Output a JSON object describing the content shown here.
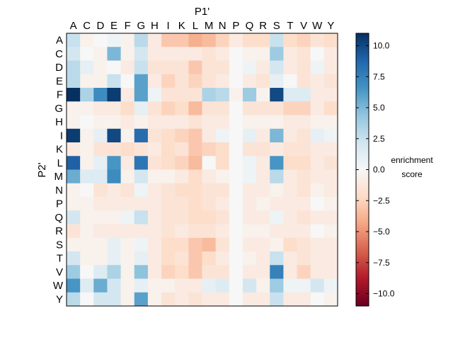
{
  "chart_data": {
    "type": "heatmap",
    "x_axis_title": "P1'",
    "y_axis_title": "P2'",
    "x_categories": [
      "A",
      "C",
      "D",
      "E",
      "F",
      "G",
      "H",
      "I",
      "K",
      "L",
      "M",
      "N",
      "P",
      "Q",
      "R",
      "S",
      "T",
      "V",
      "W",
      "Y"
    ],
    "y_categories": [
      "A",
      "C",
      "D",
      "E",
      "F",
      "G",
      "H",
      "I",
      "K",
      "L",
      "M",
      "N",
      "P",
      "Q",
      "R",
      "S",
      "T",
      "V",
      "W",
      "Y"
    ],
    "x_axis_position": "top",
    "colorbar": {
      "label_line1": "enrichment",
      "label_line2": "score",
      "range": [
        -11,
        11
      ],
      "ticks": [
        10.0,
        7.5,
        5.0,
        2.5,
        0.0,
        -2.5,
        -5.0,
        -7.5,
        -10.0
      ],
      "tick_labels": [
        "10.0",
        "7.5",
        "5.0",
        "2.5",
        "0.0",
        "−2.5",
        "−5.0",
        "−7.5",
        "−10.0"
      ],
      "colormap": "RdBu (blue = positive, red = negative)"
    },
    "values": [
      [
        2.5,
        -0.5,
        0.0,
        0.5,
        -0.5,
        3.0,
        -1.0,
        -3.0,
        -3.0,
        -4.0,
        -3.5,
        -2.5,
        -1.0,
        -2.0,
        -2.0,
        2.5,
        -2.0,
        -2.5,
        -1.5,
        -2.0
      ],
      [
        2.0,
        0.0,
        -0.5,
        5.0,
        -0.5,
        2.0,
        -1.0,
        -1.0,
        -1.0,
        -1.0,
        -1.5,
        -1.0,
        0.0,
        -0.5,
        -0.5,
        4.0,
        -1.0,
        -1.5,
        0.0,
        -1.0
      ],
      [
        3.0,
        1.0,
        -0.5,
        0.0,
        -1.0,
        2.5,
        -1.5,
        -1.5,
        -1.5,
        -3.0,
        -1.5,
        -1.5,
        0.0,
        0.5,
        -1.0,
        2.0,
        -1.0,
        -1.5,
        0.5,
        -1.0
      ],
      [
        3.0,
        -0.5,
        -0.5,
        2.5,
        0.0,
        6.0,
        -1.0,
        -2.5,
        -1.5,
        -2.5,
        -1.5,
        -1.0,
        0.0,
        -1.0,
        -1.5,
        1.0,
        0.0,
        -1.5,
        -1.0,
        -1.5
      ],
      [
        11.0,
        3.5,
        7.0,
        10.5,
        -1.0,
        6.0,
        0.5,
        -1.5,
        -1.5,
        -1.5,
        3.5,
        3.0,
        -0.5,
        4.0,
        -0.5,
        10.0,
        1.5,
        1.5,
        -1.0,
        -1.0
      ],
      [
        -0.5,
        -0.5,
        -1.0,
        -1.0,
        -2.0,
        1.0,
        -1.5,
        -2.5,
        -2.0,
        -3.5,
        -1.5,
        -1.5,
        0.0,
        -1.5,
        -1.5,
        -1.5,
        -2.5,
        -2.5,
        -1.0,
        -2.0
      ],
      [
        -0.5,
        0.0,
        -0.5,
        -0.5,
        -1.0,
        -0.5,
        -1.0,
        -1.0,
        -1.0,
        -1.5,
        -1.0,
        -1.0,
        0.0,
        -0.5,
        -0.5,
        -0.5,
        -1.0,
        -1.0,
        -0.5,
        -0.5
      ],
      [
        10.5,
        -0.5,
        1.0,
        10.0,
        -0.5,
        8.5,
        -1.5,
        -2.0,
        -2.5,
        -3.0,
        -1.0,
        0.5,
        0.0,
        1.0,
        -1.0,
        5.0,
        -1.0,
        -1.5,
        1.0,
        0.5
      ],
      [
        -1.0,
        -0.5,
        -1.5,
        -1.5,
        -2.0,
        -1.5,
        -1.0,
        -2.0,
        -1.5,
        -3.0,
        -2.5,
        -2.0,
        0.0,
        -1.5,
        -1.5,
        -1.0,
        -1.5,
        -1.5,
        -1.0,
        -1.0
      ],
      [
        9.0,
        -0.5,
        1.0,
        6.5,
        -1.0,
        8.0,
        -1.5,
        -2.0,
        -2.5,
        -3.5,
        0.0,
        -2.0,
        0.0,
        0.5,
        -1.0,
        6.5,
        -2.0,
        -2.0,
        -1.0,
        -1.5
      ],
      [
        5.5,
        1.5,
        1.5,
        7.0,
        -0.5,
        2.0,
        -0.5,
        -0.5,
        -1.0,
        -2.0,
        -1.0,
        -0.5,
        0.0,
        0.5,
        -1.0,
        3.0,
        -1.0,
        -1.5,
        -1.0,
        -1.0
      ],
      [
        -0.5,
        0.0,
        -1.5,
        -1.0,
        -1.5,
        0.5,
        -1.0,
        -1.5,
        -2.0,
        -2.0,
        -1.5,
        -1.5,
        0.0,
        -1.0,
        -1.0,
        -0.5,
        -1.0,
        -1.5,
        -0.5,
        -1.0
      ],
      [
        -0.5,
        -0.5,
        -1.0,
        -1.0,
        -1.0,
        -1.0,
        -1.0,
        -1.5,
        -1.5,
        -2.0,
        -1.5,
        -1.0,
        0.0,
        -1.0,
        -0.5,
        -1.0,
        -1.0,
        -1.0,
        0.0,
        -0.5
      ],
      [
        2.0,
        -0.5,
        -0.5,
        -0.5,
        0.5,
        2.5,
        -1.0,
        -1.5,
        -1.5,
        -2.0,
        -2.0,
        -1.5,
        0.0,
        -1.0,
        -1.0,
        0.5,
        -1.0,
        -1.5,
        -1.0,
        -1.0
      ],
      [
        -1.5,
        -0.5,
        -1.0,
        -1.0,
        -1.0,
        -1.0,
        -1.0,
        -1.5,
        -1.0,
        -1.5,
        -1.5,
        -1.0,
        0.0,
        -0.5,
        -0.5,
        -1.0,
        -1.0,
        -1.0,
        0.0,
        -0.5
      ],
      [
        -0.5,
        -0.5,
        -0.5,
        1.0,
        -0.5,
        0.5,
        -1.0,
        -2.0,
        -2.0,
        -3.0,
        -3.5,
        -1.5,
        0.0,
        -1.0,
        -1.0,
        -0.5,
        -2.0,
        -1.5,
        -1.0,
        -1.0
      ],
      [
        2.0,
        -0.5,
        -0.5,
        1.0,
        -0.5,
        1.0,
        -1.0,
        -2.0,
        -1.5,
        -3.0,
        -2.0,
        -1.0,
        0.0,
        -0.5,
        -1.0,
        2.5,
        -1.0,
        -1.5,
        -1.0,
        -1.0
      ],
      [
        4.0,
        0.0,
        1.5,
        3.5,
        -0.5,
        4.5,
        -1.0,
        -2.5,
        -2.0,
        -3.0,
        -1.5,
        -1.5,
        0.0,
        -1.0,
        -1.0,
        7.5,
        -1.0,
        -2.5,
        -1.0,
        -1.0
      ],
      [
        6.5,
        1.5,
        5.5,
        2.0,
        -0.5,
        1.0,
        -0.5,
        -0.5,
        -1.0,
        -1.0,
        1.0,
        1.5,
        0.0,
        2.0,
        -0.5,
        4.0,
        0.5,
        0.5,
        2.0,
        0.5
      ],
      [
        3.0,
        0.0,
        2.0,
        2.0,
        -0.5,
        6.0,
        -0.5,
        -1.5,
        -1.0,
        -1.5,
        -1.0,
        -1.0,
        0.0,
        -1.0,
        -1.0,
        2.5,
        -1.0,
        -1.0,
        0.0,
        -0.5
      ]
    ]
  }
}
